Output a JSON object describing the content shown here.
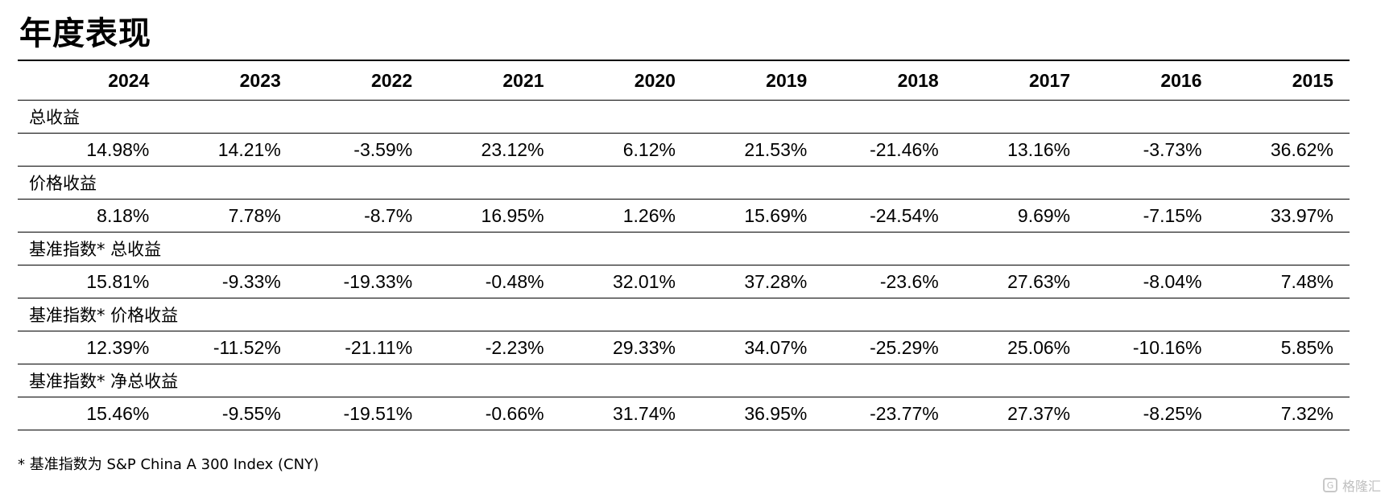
{
  "title": "年度表现",
  "years": [
    "2024",
    "2023",
    "2022",
    "2021",
    "2020",
    "2019",
    "2018",
    "2017",
    "2016",
    "2015"
  ],
  "sections": [
    {
      "label": "总收益",
      "values": [
        "14.98%",
        "14.21%",
        "-3.59%",
        "23.12%",
        "6.12%",
        "21.53%",
        "-21.46%",
        "13.16%",
        "-3.73%",
        "36.62%"
      ]
    },
    {
      "label": "价格收益",
      "values": [
        "8.18%",
        "7.78%",
        "-8.7%",
        "16.95%",
        "1.26%",
        "15.69%",
        "-24.54%",
        "9.69%",
        "-7.15%",
        "33.97%"
      ]
    },
    {
      "label": "基准指数* 总收益",
      "values": [
        "15.81%",
        "-9.33%",
        "-19.33%",
        "-0.48%",
        "32.01%",
        "37.28%",
        "-23.6%",
        "27.63%",
        "-8.04%",
        "7.48%"
      ]
    },
    {
      "label": "基准指数* 价格收益",
      "values": [
        "12.39%",
        "-11.52%",
        "-21.11%",
        "-2.23%",
        "29.33%",
        "34.07%",
        "-25.29%",
        "25.06%",
        "-10.16%",
        "5.85%"
      ]
    },
    {
      "label": "基准指数* 净总收益",
      "values": [
        "15.46%",
        "-9.55%",
        "-19.51%",
        "-0.66%",
        "31.74%",
        "36.95%",
        "-23.77%",
        "27.37%",
        "-8.25%",
        "7.32%"
      ]
    }
  ],
  "footnote": "* 基准指数为 S&P China A 300 Index (CNY)",
  "watermark": {
    "text": "格隆汇",
    "icon": "watermark-logo-icon"
  }
}
